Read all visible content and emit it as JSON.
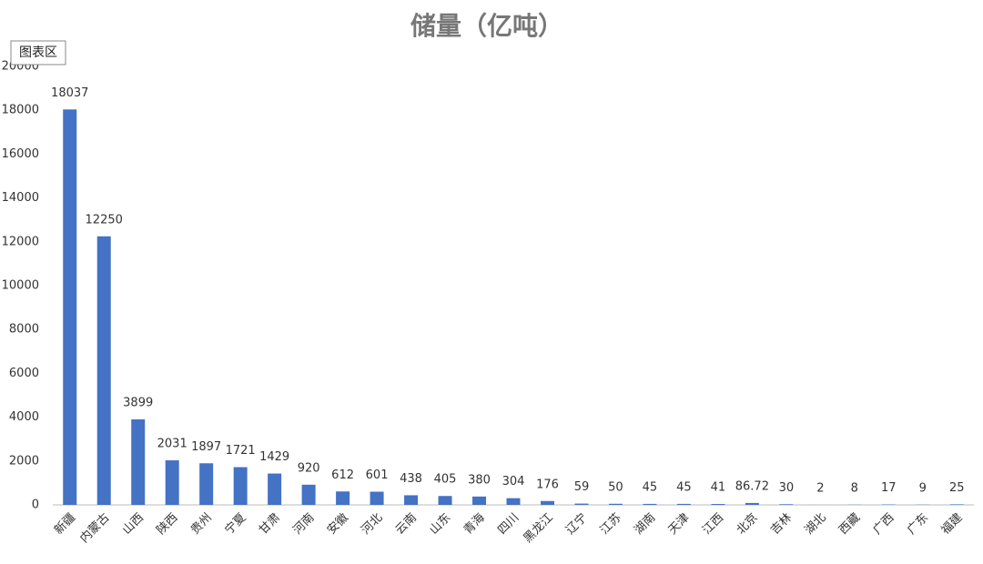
{
  "tooltip": "图表区",
  "chart_data": {
    "type": "bar",
    "title": "储量（亿吨）",
    "categories": [
      "新疆",
      "内蒙古",
      "山西",
      "陕西",
      "贵州",
      "宁夏",
      "甘肃",
      "河南",
      "安徽",
      "河北",
      "云南",
      "山东",
      "青海",
      "四川",
      "黑龙江",
      "辽宁",
      "江苏",
      "湖南",
      "天津",
      "江西",
      "北京",
      "吉林",
      "湖北",
      "西藏",
      "广西",
      "广东",
      "福建"
    ],
    "values": [
      18037,
      12250,
      3899,
      2031,
      1897,
      1721,
      1429,
      920,
      612,
      601,
      438,
      405,
      380,
      304,
      176,
      59,
      50,
      45,
      45,
      41,
      86.72,
      30,
      2,
      8,
      17,
      9,
      25
    ],
    "color": "#4472c4",
    "ylim": [
      0,
      20000
    ],
    "yticks": [
      0,
      2000,
      4000,
      6000,
      8000,
      10000,
      12000,
      14000,
      16000,
      18000,
      20000
    ],
    "grid": false
  }
}
